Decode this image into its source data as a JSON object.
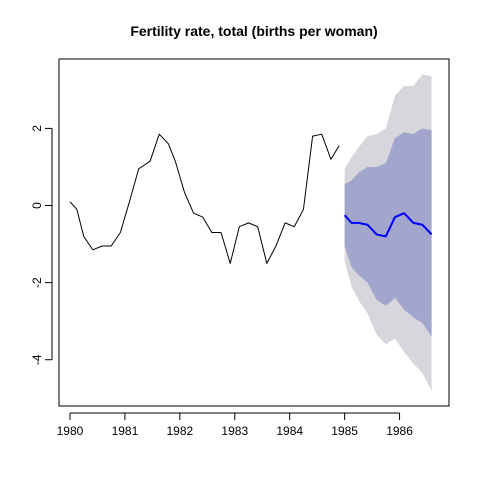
{
  "chart_data": {
    "type": "line",
    "title": "Fertility rate, total (births per woman)",
    "xlabel": "",
    "ylabel": "",
    "xlim": [
      1979.8,
      1986.9
    ],
    "ylim": [
      -5.2,
      3.8
    ],
    "x_ticks": [
      1980,
      1981,
      1982,
      1983,
      1984,
      1985,
      1986
    ],
    "y_ticks": [
      -4,
      -2,
      0,
      2
    ],
    "grid": false,
    "legend": "none",
    "colors": {
      "history": "#000000",
      "forecast": "#0000ff",
      "band80": "#a3a6cc",
      "band95": "#d6d6dc"
    },
    "series": [
      {
        "x": [
          1980.0,
          1980.125,
          1980.25,
          1980.417,
          1980.583,
          1980.75,
          1980.917,
          1981.083,
          1981.25,
          1981.458,
          1981.625,
          1981.792,
          1981.917,
          1982.083,
          1982.25,
          1982.417,
          1982.583,
          1982.75,
          1982.917,
          1983.083,
          1983.25,
          1983.417,
          1983.583,
          1983.75,
          1983.917,
          1984.083,
          1984.25,
          1984.417,
          1984.583,
          1984.75,
          1984.9
        ],
        "values": [
          0.1,
          -0.1,
          -0.8,
          -1.15,
          -1.05,
          -1.05,
          -0.7,
          0.1,
          0.95,
          1.15,
          1.85,
          1.6,
          1.15,
          0.35,
          -0.2,
          -0.3,
          -0.7,
          -0.7,
          -1.5,
          -0.55,
          -0.45,
          -0.55,
          -1.5,
          -1.05,
          -0.45,
          -0.55,
          -0.1,
          1.8,
          1.85,
          1.2,
          1.55
        ]
      },
      {
        "x": [
          1985.0,
          1985.125,
          1985.25,
          1985.417,
          1985.583,
          1985.75,
          1985.917,
          1986.083,
          1986.25,
          1986.417,
          1986.583
        ],
        "values": [
          -0.25,
          -0.45,
          -0.45,
          -0.5,
          -0.75,
          -0.8,
          -0.3,
          -0.2,
          -0.45,
          -0.5,
          -0.75
        ]
      }
    ],
    "band80": {
      "x": [
        1985.0,
        1985.125,
        1985.25,
        1985.417,
        1985.583,
        1985.75,
        1985.917,
        1986.083,
        1986.25,
        1986.417,
        1986.583
      ],
      "upper": [
        0.55,
        0.65,
        0.85,
        1.0,
        1.0,
        1.1,
        1.75,
        1.9,
        1.85,
        2.0,
        1.95
      ],
      "lower": [
        -1.05,
        -1.6,
        -1.8,
        -2.0,
        -2.45,
        -2.6,
        -2.4,
        -2.7,
        -2.9,
        -3.05,
        -3.4
      ]
    },
    "band95": {
      "x": [
        1985.0,
        1985.125,
        1985.25,
        1985.417,
        1985.583,
        1985.75,
        1985.917,
        1986.083,
        1986.25,
        1986.417,
        1986.583
      ],
      "upper": [
        0.95,
        1.25,
        1.5,
        1.8,
        1.85,
        2.0,
        2.85,
        3.1,
        3.1,
        3.4,
        3.35
      ],
      "lower": [
        -1.45,
        -2.1,
        -2.45,
        -2.8,
        -3.35,
        -3.6,
        -3.45,
        -3.8,
        -4.1,
        -4.35,
        -4.8
      ]
    }
  }
}
